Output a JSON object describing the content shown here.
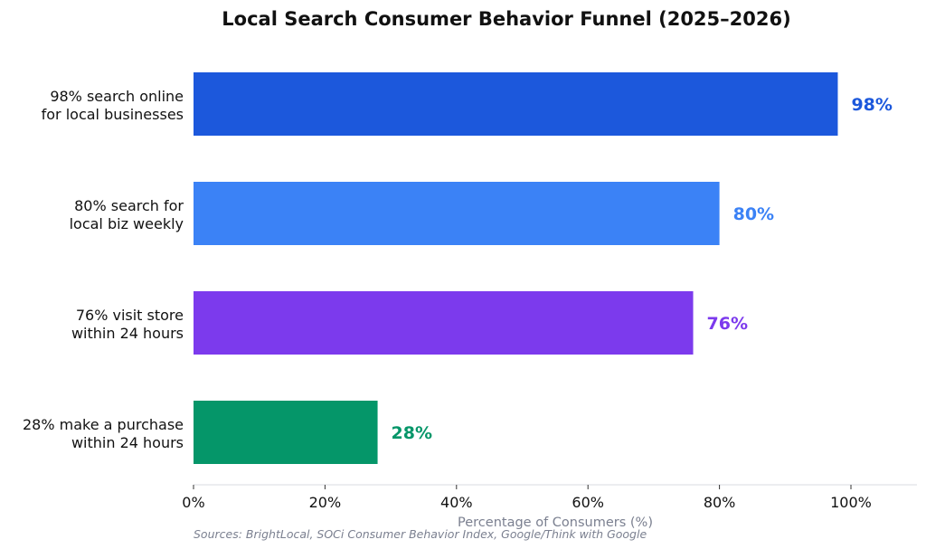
{
  "chart_data": {
    "type": "bar",
    "orientation": "horizontal",
    "title": "Local Search Consumer Behavior Funnel (2025–2026)",
    "xlabel": "Percentage of Consumers (%)",
    "ylabel": "",
    "xlim": [
      0,
      110
    ],
    "xticks": [
      0,
      20,
      40,
      60,
      80,
      100
    ],
    "xtick_labels": [
      "0%",
      "20%",
      "40%",
      "60%",
      "80%",
      "100%"
    ],
    "categories": [
      "98% search online\nfor local businesses",
      "80% search for\nlocal biz weekly",
      "76% visit store\nwithin 24 hours",
      "28% make a purchase\nwithin 24 hours"
    ],
    "values": [
      98,
      80,
      76,
      28
    ],
    "data_labels": [
      "98%",
      "80%",
      "76%",
      "28%"
    ],
    "colors": [
      "#1c58dc",
      "#3b82f6",
      "#7c3aed",
      "#059669"
    ],
    "grid": false,
    "source_note": "Sources: BrightLocal, SOCi Consumer Behavior Index, Google/Think with Google"
  }
}
